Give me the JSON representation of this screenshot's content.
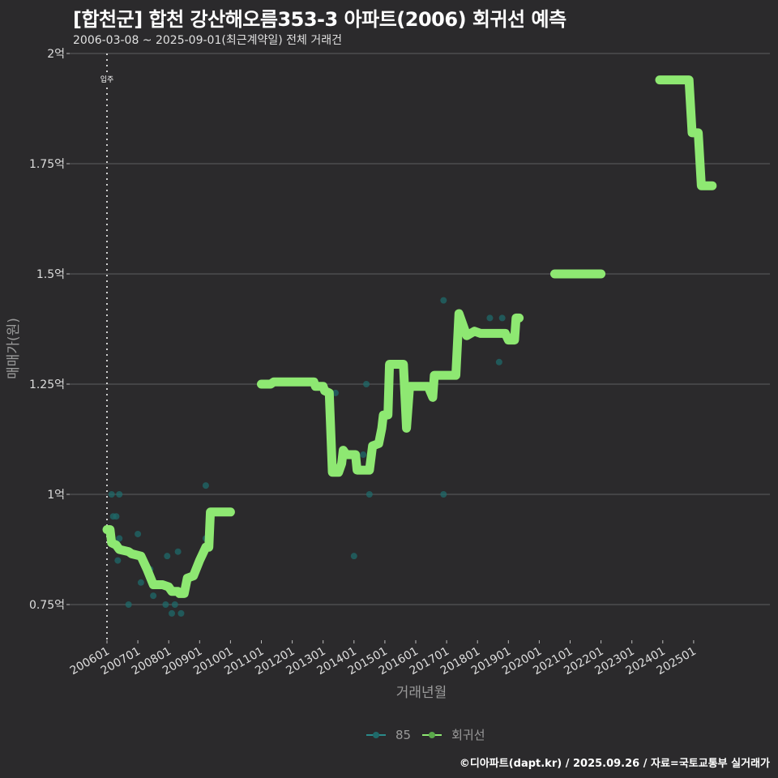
{
  "header": {
    "title": "[합천군] 합천 강산해오름353-3 아파트(2006) 회귀선 예측",
    "subtitle": "2006-03-08 ~ 2025-09-01(최근계약일) 전체 거래건"
  },
  "colors": {
    "background": "#2b2a2c",
    "grid": "#5e5d60",
    "regression": "#8ee872",
    "scatter": "#1f6a6a",
    "scatter_legend": "#2a8a8a",
    "axis_text": "#dddddd",
    "axis_title": "#9a9a9a"
  },
  "legend": {
    "items": [
      {
        "label": "85",
        "color": "#2a8a8a"
      },
      {
        "label": "회귀선",
        "color": "#8ee872"
      }
    ]
  },
  "caption": "©디아파트(dapt.kr) / 2025.09.26 / 자료=국토교통부 실거래가",
  "chart_data": {
    "type": "line",
    "title": "[합천군] 합천 강산해오름353-3 아파트(2006) 회귀선 예측",
    "subtitle": "2006-03-08 ~ 2025-09-01(최근계약일) 전체 거래건",
    "xlabel": "거래년월",
    "ylabel": "매매가(원)",
    "ylim": [
      0.68,
      2.0
    ],
    "y_unit": "억",
    "y_ticks": [
      {
        "value": 0.75,
        "label": "0.75억"
      },
      {
        "value": 1.0,
        "label": "1억"
      },
      {
        "value": 1.25,
        "label": "1.25억"
      },
      {
        "value": 1.5,
        "label": "1.5억"
      },
      {
        "value": 1.75,
        "label": "1.75억"
      },
      {
        "value": 2.0,
        "label": "2억"
      }
    ],
    "x_ticks": [
      "200601",
      "200701",
      "200801",
      "200901",
      "201001",
      "201101",
      "201201",
      "201301",
      "201401",
      "201501",
      "201601",
      "201701",
      "201801",
      "201901",
      "202001",
      "202101",
      "202201",
      "202301",
      "202401",
      "202501"
    ],
    "grid": true,
    "legend_position": "bottom",
    "annotations": [
      {
        "type": "vline",
        "x": 2006.0,
        "label": "입주",
        "style": "dotted"
      }
    ],
    "series": [
      {
        "name": "85",
        "type": "scatter",
        "points": [
          [
            2006.15,
            1.0
          ],
          [
            2006.2,
            0.95
          ],
          [
            2006.3,
            0.95
          ],
          [
            2006.4,
            1.0
          ],
          [
            2006.35,
            0.85
          ],
          [
            2006.4,
            0.9
          ],
          [
            2006.7,
            0.75
          ],
          [
            2007.0,
            0.91
          ],
          [
            2007.1,
            0.8
          ],
          [
            2007.4,
            0.83
          ],
          [
            2007.5,
            0.77
          ],
          [
            2007.9,
            0.75
          ],
          [
            2007.95,
            0.86
          ],
          [
            2008.1,
            0.73
          ],
          [
            2008.2,
            0.75
          ],
          [
            2008.3,
            0.87
          ],
          [
            2008.4,
            0.73
          ],
          [
            2009.2,
            1.02
          ],
          [
            2009.2,
            0.9
          ],
          [
            2013.4,
            1.23
          ],
          [
            2014.0,
            0.86
          ],
          [
            2014.3,
            1.09
          ],
          [
            2014.4,
            1.25
          ],
          [
            2014.5,
            1.0
          ],
          [
            2016.9,
            1.44
          ],
          [
            2016.9,
            1.0
          ],
          [
            2018.4,
            1.4
          ],
          [
            2018.7,
            1.3
          ],
          [
            2018.8,
            1.4
          ]
        ]
      },
      {
        "name": "회귀선",
        "type": "line",
        "segments": [
          [
            [
              2006.0,
              0.92
            ],
            [
              2006.1,
              0.92
            ],
            [
              2006.15,
              0.89
            ],
            [
              2006.3,
              0.885
            ],
            [
              2006.4,
              0.875
            ],
            [
              2006.7,
              0.87
            ],
            [
              2006.8,
              0.865
            ],
            [
              2007.1,
              0.86
            ],
            [
              2007.3,
              0.83
            ],
            [
              2007.5,
              0.795
            ],
            [
              2007.8,
              0.795
            ],
            [
              2008.0,
              0.79
            ],
            [
              2008.1,
              0.78
            ],
            [
              2008.3,
              0.78
            ],
            [
              2008.35,
              0.775
            ],
            [
              2008.5,
              0.775
            ],
            [
              2008.6,
              0.81
            ],
            [
              2008.8,
              0.815
            ],
            [
              2009.0,
              0.85
            ],
            [
              2009.2,
              0.88
            ],
            [
              2009.3,
              0.88
            ],
            [
              2009.35,
              0.96
            ],
            [
              2010.0,
              0.96
            ]
          ],
          [
            [
              2011.0,
              1.25
            ],
            [
              2011.3,
              1.25
            ],
            [
              2011.4,
              1.255
            ],
            [
              2012.0,
              1.255
            ],
            [
              2012.7,
              1.255
            ],
            [
              2012.75,
              1.245
            ],
            [
              2013.0,
              1.245
            ],
            [
              2013.05,
              1.235
            ],
            [
              2013.2,
              1.23
            ],
            [
              2013.3,
              1.05
            ],
            [
              2013.5,
              1.05
            ],
            [
              2013.6,
              1.07
            ],
            [
              2013.65,
              1.1
            ],
            [
              2013.75,
              1.09
            ],
            [
              2014.05,
              1.09
            ],
            [
              2014.1,
              1.055
            ],
            [
              2014.5,
              1.055
            ],
            [
              2014.6,
              1.11
            ],
            [
              2014.8,
              1.115
            ],
            [
              2014.9,
              1.15
            ],
            [
              2014.95,
              1.18
            ],
            [
              2015.1,
              1.18
            ],
            [
              2015.15,
              1.295
            ],
            [
              2015.6,
              1.295
            ],
            [
              2015.7,
              1.15
            ],
            [
              2015.8,
              1.245
            ],
            [
              2016.4,
              1.245
            ],
            [
              2016.55,
              1.22
            ],
            [
              2016.6,
              1.27
            ],
            [
              2017.3,
              1.27
            ],
            [
              2017.4,
              1.41
            ],
            [
              2017.55,
              1.38
            ],
            [
              2017.65,
              1.36
            ],
            [
              2017.9,
              1.37
            ],
            [
              2018.1,
              1.365
            ],
            [
              2018.9,
              1.365
            ],
            [
              2019.0,
              1.35
            ],
            [
              2019.2,
              1.35
            ],
            [
              2019.25,
              1.4
            ],
            [
              2019.35,
              1.4
            ]
          ],
          [
            [
              2020.5,
              1.5
            ],
            [
              2022.0,
              1.5
            ]
          ],
          [
            [
              2023.9,
              1.94
            ],
            [
              2024.85,
              1.94
            ],
            [
              2024.95,
              1.82
            ],
            [
              2025.15,
              1.82
            ],
            [
              2025.25,
              1.7
            ],
            [
              2025.6,
              1.7
            ]
          ]
        ]
      }
    ]
  }
}
